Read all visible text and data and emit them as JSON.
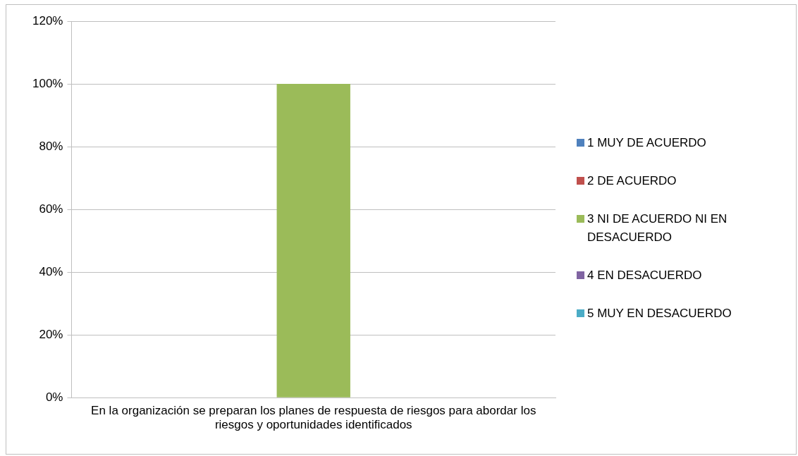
{
  "chart_data": {
    "type": "bar",
    "categories": [
      "En la organización se preparan los planes de respuesta de riesgos para abordar los riesgos y oportunidades identificados"
    ],
    "series": [
      {
        "name": "1 MUY DE ACUERDO",
        "color": "#4f81bd",
        "values": [
          0
        ]
      },
      {
        "name": "2 DE ACUERDO",
        "color": "#c0504d",
        "values": [
          0
        ]
      },
      {
        "name": "3 NI DE ACUERDO NI EN DESACUERDO",
        "color": "#9bbb59",
        "values": [
          100
        ]
      },
      {
        "name": "4 EN DESACUERDO",
        "color": "#8064a2",
        "values": [
          0
        ]
      },
      {
        "name": "5 MUY EN DESACUERDO",
        "color": "#4bacc6",
        "values": [
          0
        ]
      }
    ],
    "ylim": [
      0,
      120
    ],
    "yticks": [
      {
        "value": 0,
        "label": "0%"
      },
      {
        "value": 20,
        "label": "20%"
      },
      {
        "value": 40,
        "label": "40%"
      },
      {
        "value": 60,
        "label": "60%"
      },
      {
        "value": 80,
        "label": "80%"
      },
      {
        "value": 100,
        "label": "100%"
      },
      {
        "value": 120,
        "label": "120%"
      }
    ],
    "grid": "y",
    "legend": "right"
  }
}
